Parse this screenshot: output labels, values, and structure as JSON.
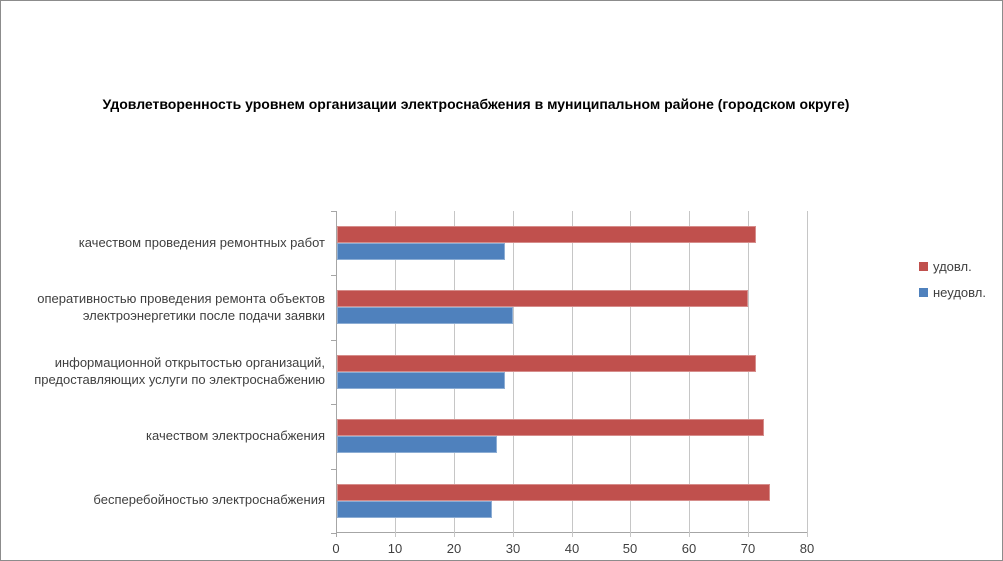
{
  "chart_data": {
    "type": "bar",
    "orientation": "horizontal",
    "title": "Удовлетворенность уровнем организации  электроснабжения в муниципальном районе (городском округе)",
    "categories": [
      "качеством проведения ремонтных работ",
      "оперативностью проведения ремонта объектов электроэнергетики после подачи заявки",
      "информационной открытостью организаций, предоставляющих услуги по электроснабжению",
      "качеством электроснабжения",
      "бесперебойностью электроснабжения"
    ],
    "series": [
      {
        "name": "удовл.",
        "color": "#C0504D",
        "values": [
          71.4,
          70.0,
          71.4,
          72.7,
          73.7
        ]
      },
      {
        "name": "неудовл.",
        "color": "#4F81BD",
        "values": [
          28.6,
          30.0,
          28.6,
          27.3,
          26.3
        ]
      }
    ],
    "xlim": [
      0,
      80
    ],
    "x_ticks": [
      0,
      10,
      20,
      30,
      40,
      50,
      60,
      70,
      80
    ],
    "grid": true,
    "legend_position": "right"
  },
  "colors": {
    "grid": "#C6C6C6",
    "axis": "#A6A6A6",
    "label_text": "#3F3F3F",
    "title_text": "#000000",
    "frame_border": "#8C8C8C",
    "background": "#FFFFFF"
  }
}
